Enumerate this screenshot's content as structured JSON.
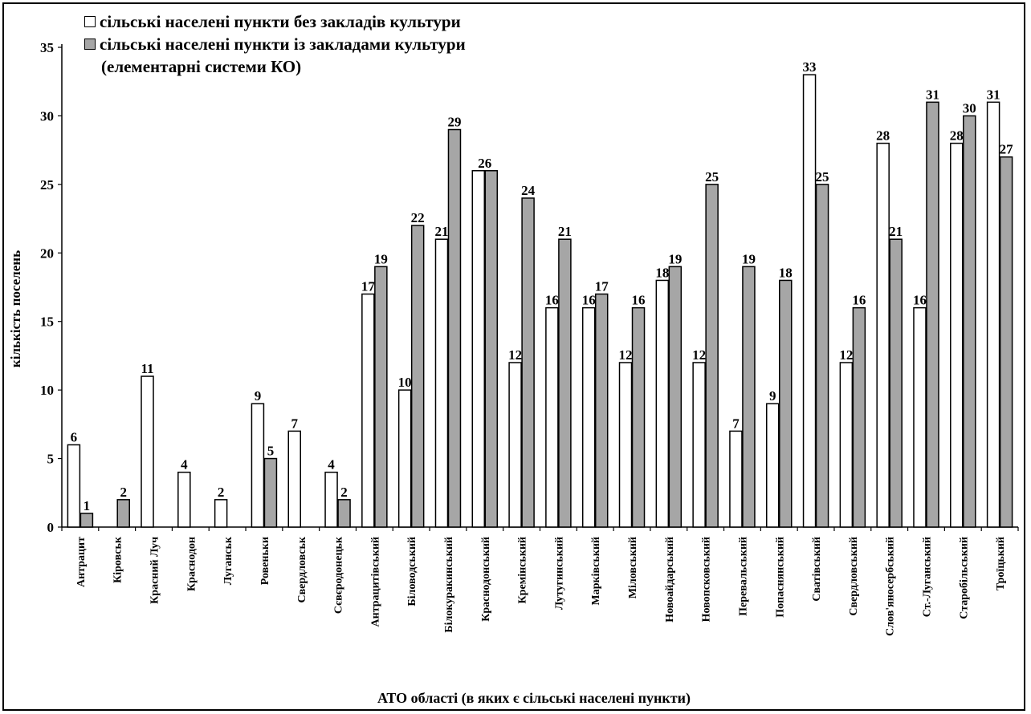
{
  "chart_data": {
    "type": "bar",
    "xlabel": "АТО області (в яких є сільські населені пункти)",
    "ylabel": "кількість поселень",
    "ylim": [
      0,
      35
    ],
    "yticks": [
      "0",
      "5",
      "10",
      "15",
      "20",
      "25",
      "30",
      "35"
    ],
    "grid": false,
    "legend_position": "top-left",
    "legend_note": "(елементарні системи КО)",
    "categories": [
      "Антрацит",
      "Кіровськ",
      "Красний Луч",
      "Краснодон",
      "Луганськ",
      "Ровеньки",
      "Свердловськ",
      "Сєвєродонецьк",
      "Антрацитівський",
      "Біловодський",
      "Білокуракинський",
      "Краснодонський",
      "Кремінський",
      "Лутугинський",
      "Марківський",
      "Міловський",
      "Новоайдарський",
      "Новопсковський",
      "Перевальський",
      "Попаснянський",
      "Сватівський",
      "Свердловський",
      "Слов'яносербський",
      "Ст.-Луганський",
      "Старобільський",
      "Троїцький"
    ],
    "series": [
      {
        "name": "сільські населені пункти без закладів культури",
        "color": "#ffffff",
        "values": [
          6,
          null,
          11,
          4,
          2,
          9,
          7,
          4,
          17,
          10,
          21,
          26,
          12,
          16,
          16,
          12,
          18,
          12,
          7,
          9,
          33,
          12,
          28,
          16,
          28,
          31
        ],
        "labels": [
          "6",
          "",
          "11",
          "4",
          "2",
          "9",
          "7",
          "4",
          "17",
          "10",
          "21",
          "26",
          "12",
          "16",
          "16",
          "12",
          "18",
          "12",
          "7",
          "9",
          "33",
          "12",
          "28",
          "16",
          "28",
          "31"
        ]
      },
      {
        "name": "сільські населені пункти із закладами культури",
        "color": "#a6a6a6",
        "values": [
          1,
          2,
          null,
          null,
          null,
          5,
          null,
          2,
          19,
          22,
          29,
          26,
          24,
          21,
          17,
          16,
          19,
          25,
          19,
          18,
          25,
          16,
          21,
          31,
          30,
          27
        ],
        "labels": [
          "1",
          "2",
          "",
          "",
          "",
          "5",
          "",
          "2",
          "19",
          "22",
          "29",
          "",
          "24",
          "21",
          "17",
          "16",
          "19",
          "25",
          "19",
          "18",
          "25",
          "16",
          "21",
          "31",
          "30",
          "27"
        ]
      }
    ]
  }
}
